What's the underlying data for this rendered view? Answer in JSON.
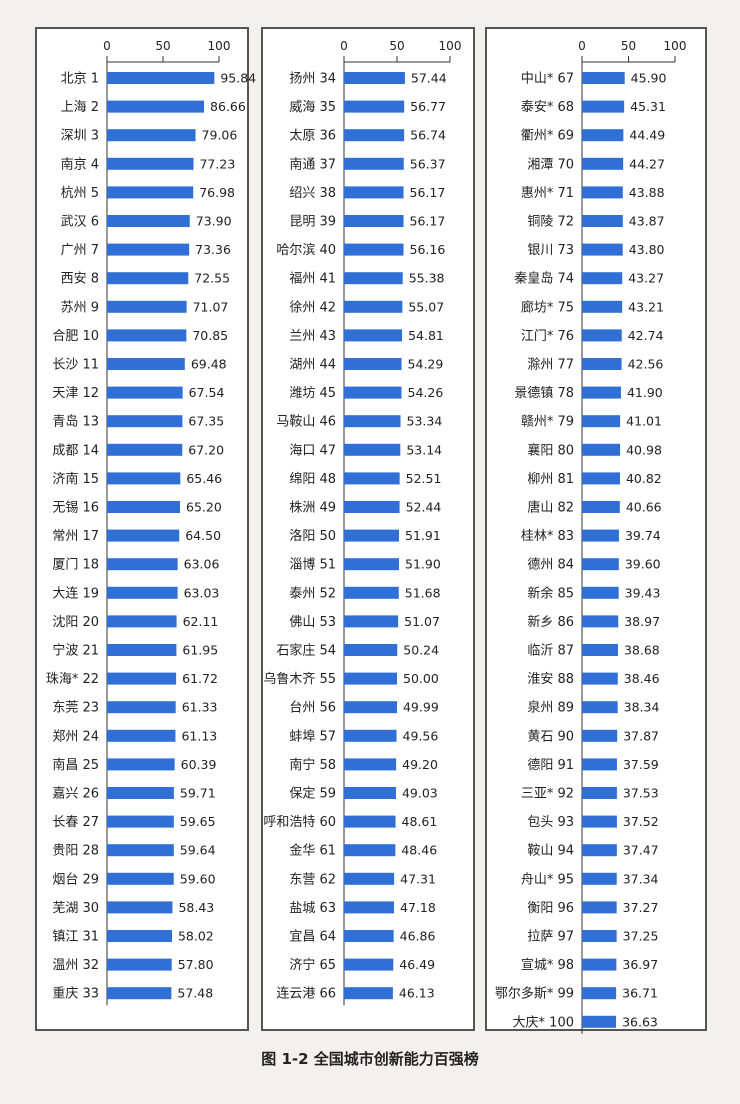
{
  "caption": "图 1-2   全国城市创新能力百强榜",
  "chart_data": [
    {
      "type": "bar",
      "orientation": "horizontal",
      "xlim": [
        0,
        100
      ],
      "ticks": [
        0,
        50,
        100
      ],
      "bar_color": "#2f6fd6",
      "categories": [
        "北京 1",
        "上海 2",
        "深圳 3",
        "南京 4",
        "杭州 5",
        "武汉 6",
        "广州 7",
        "西安 8",
        "苏州 9",
        "合肥 10",
        "长沙 11",
        "天津 12",
        "青岛 13",
        "成都 14",
        "济南 15",
        "无锡 16",
        "常州 17",
        "厦门 18",
        "大连 19",
        "沈阳 20",
        "宁波 21",
        "珠海* 22",
        "东莞 23",
        "郑州 24",
        "南昌 25",
        "嘉兴 26",
        "长春 27",
        "贵阳 28",
        "烟台 29",
        "芜湖 30",
        "镇江 31",
        "温州 32",
        "重庆 33"
      ],
      "values": [
        95.84,
        86.66,
        79.06,
        77.23,
        76.98,
        73.9,
        73.36,
        72.55,
        71.07,
        70.85,
        69.48,
        67.54,
        67.35,
        67.2,
        65.46,
        65.2,
        64.5,
        63.06,
        63.03,
        62.11,
        61.95,
        61.72,
        61.33,
        61.13,
        60.39,
        59.71,
        59.65,
        59.64,
        59.6,
        58.43,
        58.02,
        57.8,
        57.48
      ],
      "labels": [
        "95.84",
        "86.66",
        "79.06",
        "77.23",
        "76.98",
        "73.90",
        "73.36",
        "72.55",
        "71.07",
        "70.85",
        "69.48",
        "67.54",
        "67.35",
        "67.20",
        "65.46",
        "65.20",
        "64.50",
        "63.06",
        "63.03",
        "62.11",
        "61.95",
        "61.72",
        "61.33",
        "61.13",
        "60.39",
        "59.71",
        "59.65",
        "59.64",
        "59.60",
        "58.43",
        "58.02",
        "57.80",
        "57.48"
      ]
    },
    {
      "type": "bar",
      "orientation": "horizontal",
      "xlim": [
        0,
        100
      ],
      "ticks": [
        0,
        50,
        100
      ],
      "bar_color": "#2f6fd6",
      "categories": [
        "扬州 34",
        "威海 35",
        "太原 36",
        "南通 37",
        "绍兴 38",
        "昆明 39",
        "哈尔滨 40",
        "福州 41",
        "徐州 42",
        "兰州 43",
        "湖州 44",
        "潍坊 45",
        "马鞍山 46",
        "海口 47",
        "绵阳 48",
        "株洲 49",
        "洛阳 50",
        "淄博 51",
        "泰州 52",
        "佛山 53",
        "石家庄 54",
        "乌鲁木齐 55",
        "台州 56",
        "蚌埠 57",
        "南宁 58",
        "保定 59",
        "呼和浩特 60",
        "金华 61",
        "东营 62",
        "盐城 63",
        "宜昌 64",
        "济宁 65",
        "连云港 66"
      ],
      "values": [
        57.44,
        56.77,
        56.74,
        56.37,
        56.17,
        56.17,
        56.16,
        55.38,
        55.07,
        54.81,
        54.29,
        54.26,
        53.34,
        53.14,
        52.51,
        52.44,
        51.91,
        51.9,
        51.68,
        51.07,
        50.24,
        50.0,
        49.99,
        49.56,
        49.2,
        49.03,
        48.61,
        48.46,
        47.31,
        47.18,
        46.86,
        46.49,
        46.13
      ],
      "labels": [
        "57.44",
        "56.77",
        "56.74",
        "56.37",
        "56.17",
        "56.17",
        "56.16",
        "55.38",
        "55.07",
        "54.81",
        "54.29",
        "54.26",
        "53.34",
        "53.14",
        "52.51",
        "52.44",
        "51.91",
        "51.90",
        "51.68",
        "51.07",
        "50.24",
        "50.00",
        "49.99",
        "49.56",
        "49.20",
        "49.03",
        "48.61",
        "48.46",
        "47.31",
        "47.18",
        "46.86",
        "46.49",
        "46.13"
      ]
    },
    {
      "type": "bar",
      "orientation": "horizontal",
      "xlim": [
        0,
        100
      ],
      "ticks": [
        0,
        50,
        100
      ],
      "bar_color": "#2f6fd6",
      "categories": [
        "中山* 67",
        "泰安* 68",
        "衢州* 69",
        "湘潭 70",
        "惠州* 71",
        "铜陵 72",
        "银川 73",
        "秦皇岛 74",
        "廊坊* 75",
        "江门* 76",
        "滁州 77",
        "景德镇 78",
        "赣州* 79",
        "襄阳 80",
        "柳州 81",
        "唐山 82",
        "桂林* 83",
        "德州 84",
        "新余 85",
        "新乡 86",
        "临沂 87",
        "淮安 88",
        "泉州 89",
        "黄石 90",
        "德阳 91",
        "三亚* 92",
        "包头 93",
        "鞍山 94",
        "舟山* 95",
        "衡阳 96",
        "拉萨 97",
        "宣城* 98",
        "鄂尔多斯* 99",
        "大庆* 100"
      ],
      "values": [
        45.9,
        45.31,
        44.49,
        44.27,
        43.88,
        43.87,
        43.8,
        43.27,
        43.21,
        42.74,
        42.56,
        41.9,
        41.01,
        40.98,
        40.82,
        40.66,
        39.74,
        39.6,
        39.43,
        38.97,
        38.68,
        38.46,
        38.34,
        37.87,
        37.59,
        37.53,
        37.52,
        37.47,
        37.34,
        37.27,
        37.25,
        36.97,
        36.71,
        36.63
      ],
      "labels": [
        "45.90",
        "45.31",
        "44.49",
        "44.27",
        "43.88",
        "43.87",
        "43.80",
        "43.27",
        "43.21",
        "42.74",
        "42.56",
        "41.90",
        "41.01",
        "40.98",
        "40.82",
        "40.66",
        "39.74",
        "39.60",
        "39.43",
        "38.97",
        "38.68",
        "38.46",
        "38.34",
        "37.87",
        "37.59",
        "37.53",
        "37.52",
        "37.47",
        "37.34",
        "37.27",
        "37.25",
        "36.97",
        "36.71",
        "36.63"
      ]
    }
  ]
}
